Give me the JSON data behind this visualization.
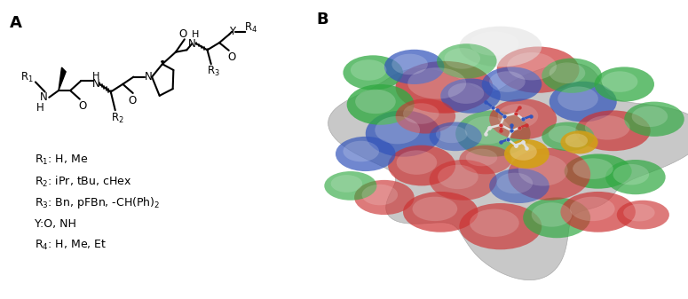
{
  "panel_A_label": "A",
  "panel_B_label": "B",
  "label_fontsize": 13,
  "label_fontweight": "bold",
  "annotation_fontsize": 9,
  "r_groups": [
    "R$_1$: H, Me",
    "R$_2$: iPr, tBu, cHex",
    "R$_3$: Bn, pFBn, -CH(Ph)$_2$",
    "Y:O, NH",
    "R$_4$: H, Me, Et"
  ],
  "background_color": "#ffffff",
  "line_color": "#000000",
  "text_color": "#000000",
  "surface_spots": [
    [
      35,
      72,
      13,
      9,
      "#cc3333",
      0.75,
      2
    ],
    [
      60,
      78,
      11,
      8,
      "#cc3333",
      0.7,
      2
    ],
    [
      72,
      67,
      9,
      7,
      "#3355bb",
      0.72,
      2
    ],
    [
      80,
      57,
      10,
      7,
      "#cc3333",
      0.7,
      2
    ],
    [
      76,
      43,
      9,
      6,
      "#33aa44",
      0.8,
      2
    ],
    [
      83,
      73,
      8,
      6,
      "#33aa44",
      0.75,
      2
    ],
    [
      24,
      56,
      10,
      8,
      "#3355bb",
      0.75,
      2
    ],
    [
      18,
      66,
      9,
      7,
      "#33aa44",
      0.8,
      2
    ],
    [
      16,
      77,
      8,
      6,
      "#33aa44",
      0.75,
      2
    ],
    [
      29,
      45,
      9,
      7,
      "#cc3333",
      0.7,
      2
    ],
    [
      19,
      34,
      8,
      6,
      "#cc3333",
      0.65,
      2
    ],
    [
      34,
      29,
      10,
      7,
      "#cc3333",
      0.7,
      2
    ],
    [
      50,
      24,
      11,
      8,
      "#cc3333",
      0.68,
      2
    ],
    [
      65,
      27,
      9,
      7,
      "#33aa44",
      0.7,
      2
    ],
    [
      76,
      29,
      10,
      7,
      "#cc3333",
      0.7,
      2
    ],
    [
      63,
      42,
      11,
      9,
      "#cc3333",
      0.65,
      2
    ],
    [
      40,
      40,
      9,
      7,
      "#cc3333",
      0.6,
      2
    ],
    [
      48,
      56,
      10,
      8,
      "#33aa44",
      0.6,
      2
    ],
    [
      56,
      61,
      9,
      7,
      "#cc3333",
      0.65,
      2
    ],
    [
      42,
      69,
      8,
      6,
      "#3355bb",
      0.7,
      2
    ],
    [
      53,
      73,
      8,
      6,
      "#3355bb",
      0.7,
      2
    ],
    [
      27,
      79,
      8,
      6,
      "#3355bb",
      0.72,
      2
    ],
    [
      69,
      76,
      8,
      6,
      "#33aa44",
      0.7,
      2
    ],
    [
      86,
      41,
      8,
      6,
      "#33aa44",
      0.72,
      2
    ],
    [
      14,
      49,
      8,
      6,
      "#3355bb",
      0.7,
      2
    ],
    [
      91,
      61,
      8,
      6,
      "#33aa44",
      0.7,
      2
    ],
    [
      57,
      49,
      6,
      5,
      "#d4a017",
      0.92,
      3
    ],
    [
      71,
      53,
      5,
      4,
      "#d4a017",
      0.88,
      3
    ],
    [
      50,
      86,
      11,
      7,
      "#dddddd",
      0.5,
      2
    ],
    [
      41,
      81,
      8,
      6,
      "#33aa44",
      0.6,
      2
    ],
    [
      88,
      28,
      7,
      5,
      "#cc3333",
      0.65,
      2
    ],
    [
      10,
      38,
      7,
      5,
      "#33aa44",
      0.65,
      2
    ],
    [
      55,
      38,
      8,
      6,
      "#3355bb",
      0.6,
      2
    ],
    [
      30,
      62,
      8,
      6,
      "#cc3333",
      0.6,
      2
    ],
    [
      68,
      55,
      7,
      5,
      "#33aa44",
      0.65,
      2
    ],
    [
      46,
      47,
      7,
      5,
      "#cc3333",
      0.55,
      2
    ],
    [
      38,
      55,
      7,
      5,
      "#3355bb",
      0.6,
      2
    ]
  ],
  "sticks": [
    [
      48,
      65,
      51,
      62,
      "#e0e0e0"
    ],
    [
      51,
      62,
      54,
      63,
      "#e0e0e0"
    ],
    [
      54,
      63,
      56,
      61,
      "#e0e0e0"
    ],
    [
      51,
      62,
      50,
      59,
      "#e0e0e0"
    ],
    [
      50,
      59,
      53,
      57,
      "#e0e0e0"
    ],
    [
      53,
      57,
      55,
      58,
      "#e0e0e0"
    ],
    [
      53,
      57,
      52,
      54,
      "#e0e0e0"
    ],
    [
      52,
      54,
      54,
      52,
      "#e0e0e0"
    ],
    [
      54,
      52,
      56,
      53,
      "#e0e0e0"
    ],
    [
      56,
      53,
      57,
      51,
      "#e0e0e0"
    ],
    [
      50,
      59,
      47,
      58,
      "#e0e0e0"
    ],
    [
      47,
      58,
      46,
      56,
      "#e0e0e0"
    ],
    [
      51,
      62,
      49,
      64,
      "#3355bb"
    ],
    [
      53,
      57,
      53,
      59,
      "#3355bb"
    ],
    [
      52,
      54,
      50,
      53,
      "#3355bb"
    ],
    [
      50,
      59,
      50,
      57,
      "#cc3333"
    ],
    [
      55,
      58,
      57,
      59,
      "#cc3333"
    ],
    [
      48,
      65,
      46,
      67,
      "#3355bb"
    ],
    [
      54,
      63,
      55,
      65,
      "#cc3333"
    ],
    [
      56,
      61,
      58,
      62,
      "#3355bb"
    ]
  ]
}
